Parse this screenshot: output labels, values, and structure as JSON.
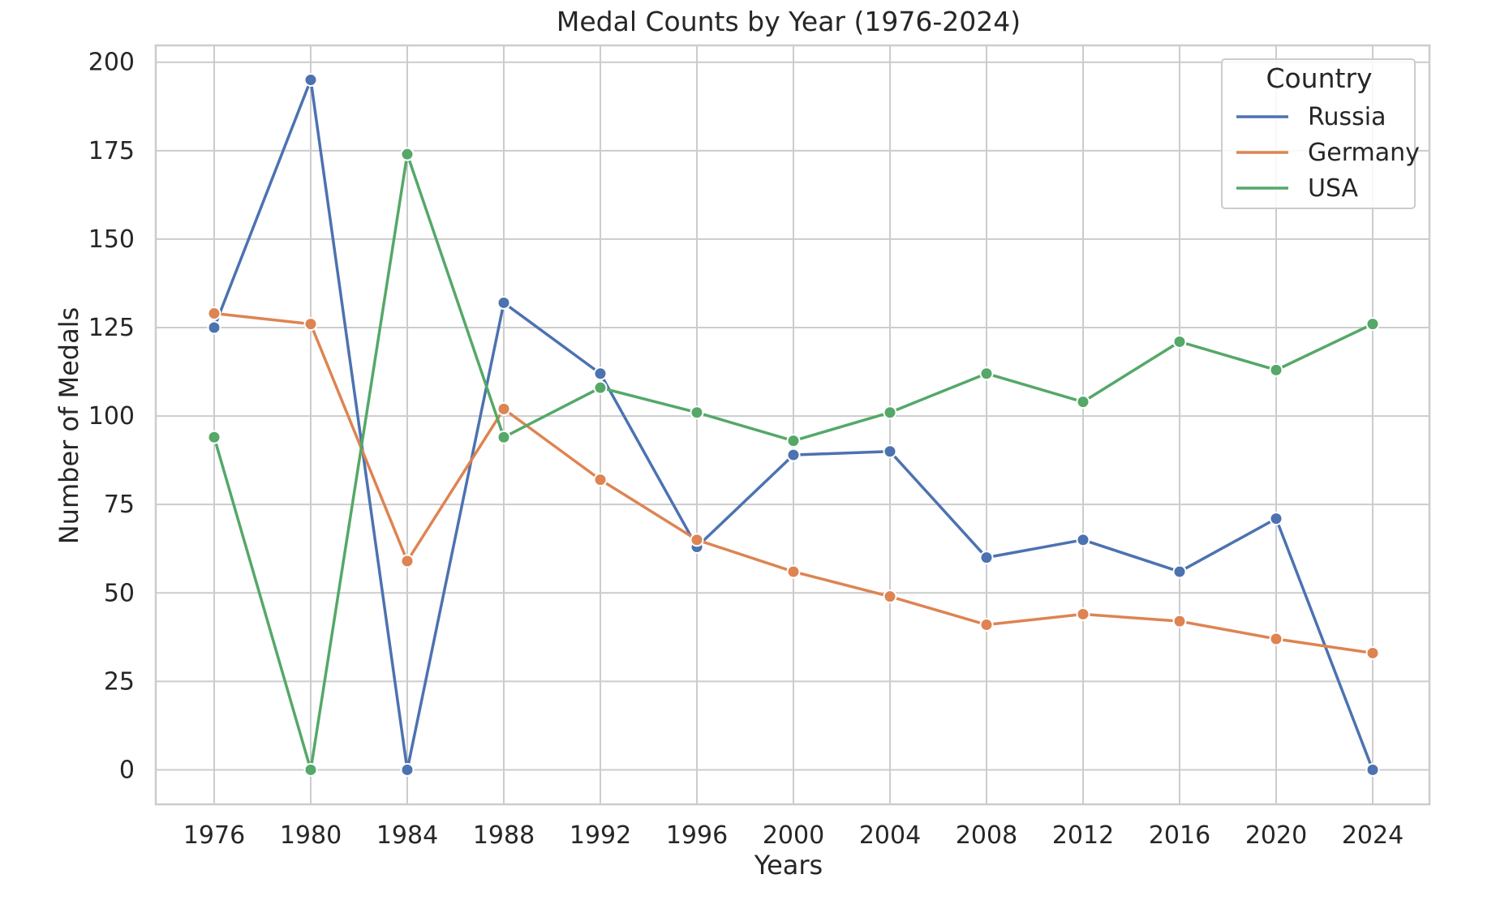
{
  "chart_data": {
    "type": "line",
    "title": "Medal Counts by Year (1976-2024)",
    "xlabel": "Years",
    "ylabel": "Number of Medals",
    "x": [
      "1976",
      "1980",
      "1984",
      "1988",
      "1992",
      "1996",
      "2000",
      "2004",
      "2008",
      "2012",
      "2016",
      "2020",
      "2024"
    ],
    "yticks": [
      0,
      25,
      50,
      75,
      100,
      125,
      150,
      175,
      200
    ],
    "ylim": [
      -9.75,
      204.75
    ],
    "grid": true,
    "legend": {
      "title": "Country",
      "placement": "top-right"
    },
    "series": [
      {
        "name": "Russia",
        "color": "#4c72b0",
        "values": [
          125,
          195,
          0,
          132,
          112,
          63,
          89,
          90,
          60,
          65,
          56,
          71,
          0
        ]
      },
      {
        "name": "Germany",
        "color": "#dd8452",
        "values": [
          129,
          126,
          59,
          102,
          82,
          65,
          56,
          49,
          41,
          44,
          42,
          37,
          33
        ]
      },
      {
        "name": "USA",
        "color": "#55a868",
        "values": [
          94,
          0,
          174,
          94,
          108,
          101,
          93,
          101,
          112,
          104,
          121,
          113,
          126
        ]
      }
    ]
  }
}
